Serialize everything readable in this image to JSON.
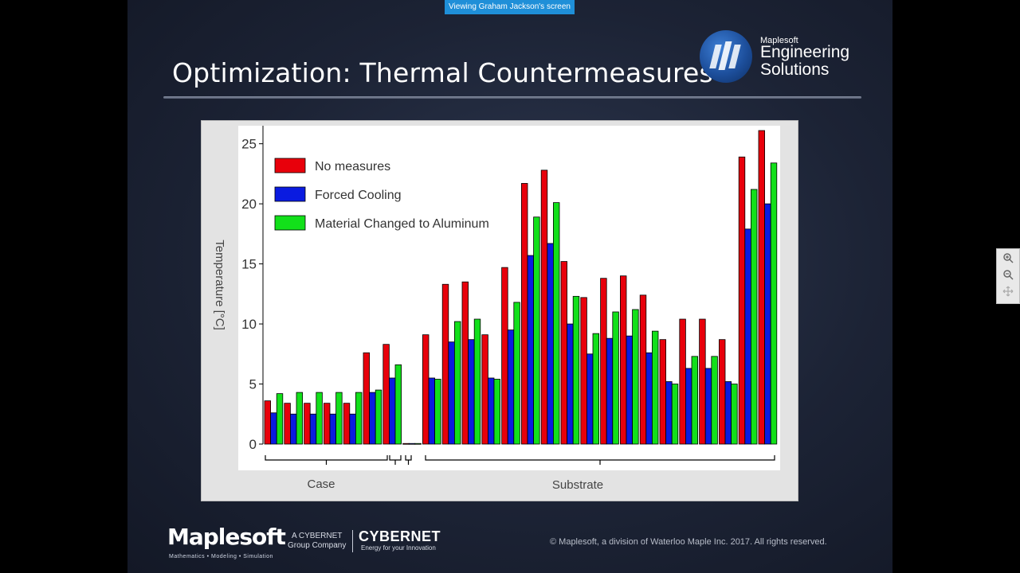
{
  "share_banner": "Viewing Graham Jackson's screen",
  "slide": {
    "title": "Optimization: Thermal Countermeasures",
    "logo": {
      "small": "Maplesoft",
      "line1": "Engineering",
      "line2": "Solutions"
    },
    "footer": {
      "maplesoft": "Maplesoft",
      "maplesoft_tag": "Mathematics • Modeling • Simulation",
      "cybernet_small_1": "A CYBERNET",
      "cybernet_small_2": "Group Company",
      "cybernet": "CYBERNET",
      "cybernet_tag": "Energy for your Innovation",
      "copyright": "© Maplesoft, a division of Waterloo Maple Inc. 2017.  All rights reserved."
    }
  },
  "zoom": {
    "zoom_in_icon": "zoom-in-icon",
    "zoom_out_icon": "zoom-out-icon",
    "fit_icon": "fit-icon"
  },
  "chart_data": {
    "type": "bar",
    "ylabel": "Temperature [°C]",
    "ylim": [
      0,
      26.5
    ],
    "yticks": [
      0,
      5,
      10,
      15,
      20,
      25
    ],
    "legend_position": "top-left",
    "groups": [
      "Case",
      "Substrate"
    ],
    "series": [
      {
        "name": "No measures",
        "color": "#e8000b",
        "values": [
          3.6,
          3.4,
          3.4,
          3.4,
          3.4,
          7.6,
          8.3,
          0.05,
          9.1,
          13.3,
          13.5,
          9.1,
          14.7,
          21.7,
          22.8,
          15.2,
          12.2,
          13.8,
          14.0,
          12.4,
          8.7,
          10.4,
          10.4,
          8.7,
          23.9,
          26.1
        ]
      },
      {
        "name": "Forced Cooling",
        "color": "#0a1be0",
        "values": [
          2.6,
          2.5,
          2.5,
          2.5,
          2.5,
          4.3,
          5.5,
          0.05,
          5.5,
          8.5,
          8.7,
          5.5,
          9.5,
          15.7,
          16.7,
          10.0,
          7.5,
          8.8,
          9.0,
          7.6,
          5.2,
          6.3,
          6.3,
          5.2,
          17.9,
          20.0
        ]
      },
      {
        "name": "Material Changed to Aluminum",
        "color": "#12e01a",
        "values": [
          4.2,
          4.3,
          4.3,
          4.3,
          4.3,
          4.5,
          6.6,
          0.05,
          5.4,
          10.2,
          10.4,
          5.4,
          11.8,
          18.9,
          20.1,
          12.3,
          9.2,
          11.0,
          11.2,
          9.4,
          5.0,
          7.3,
          7.3,
          5.0,
          21.2,
          23.4
        ]
      }
    ]
  }
}
